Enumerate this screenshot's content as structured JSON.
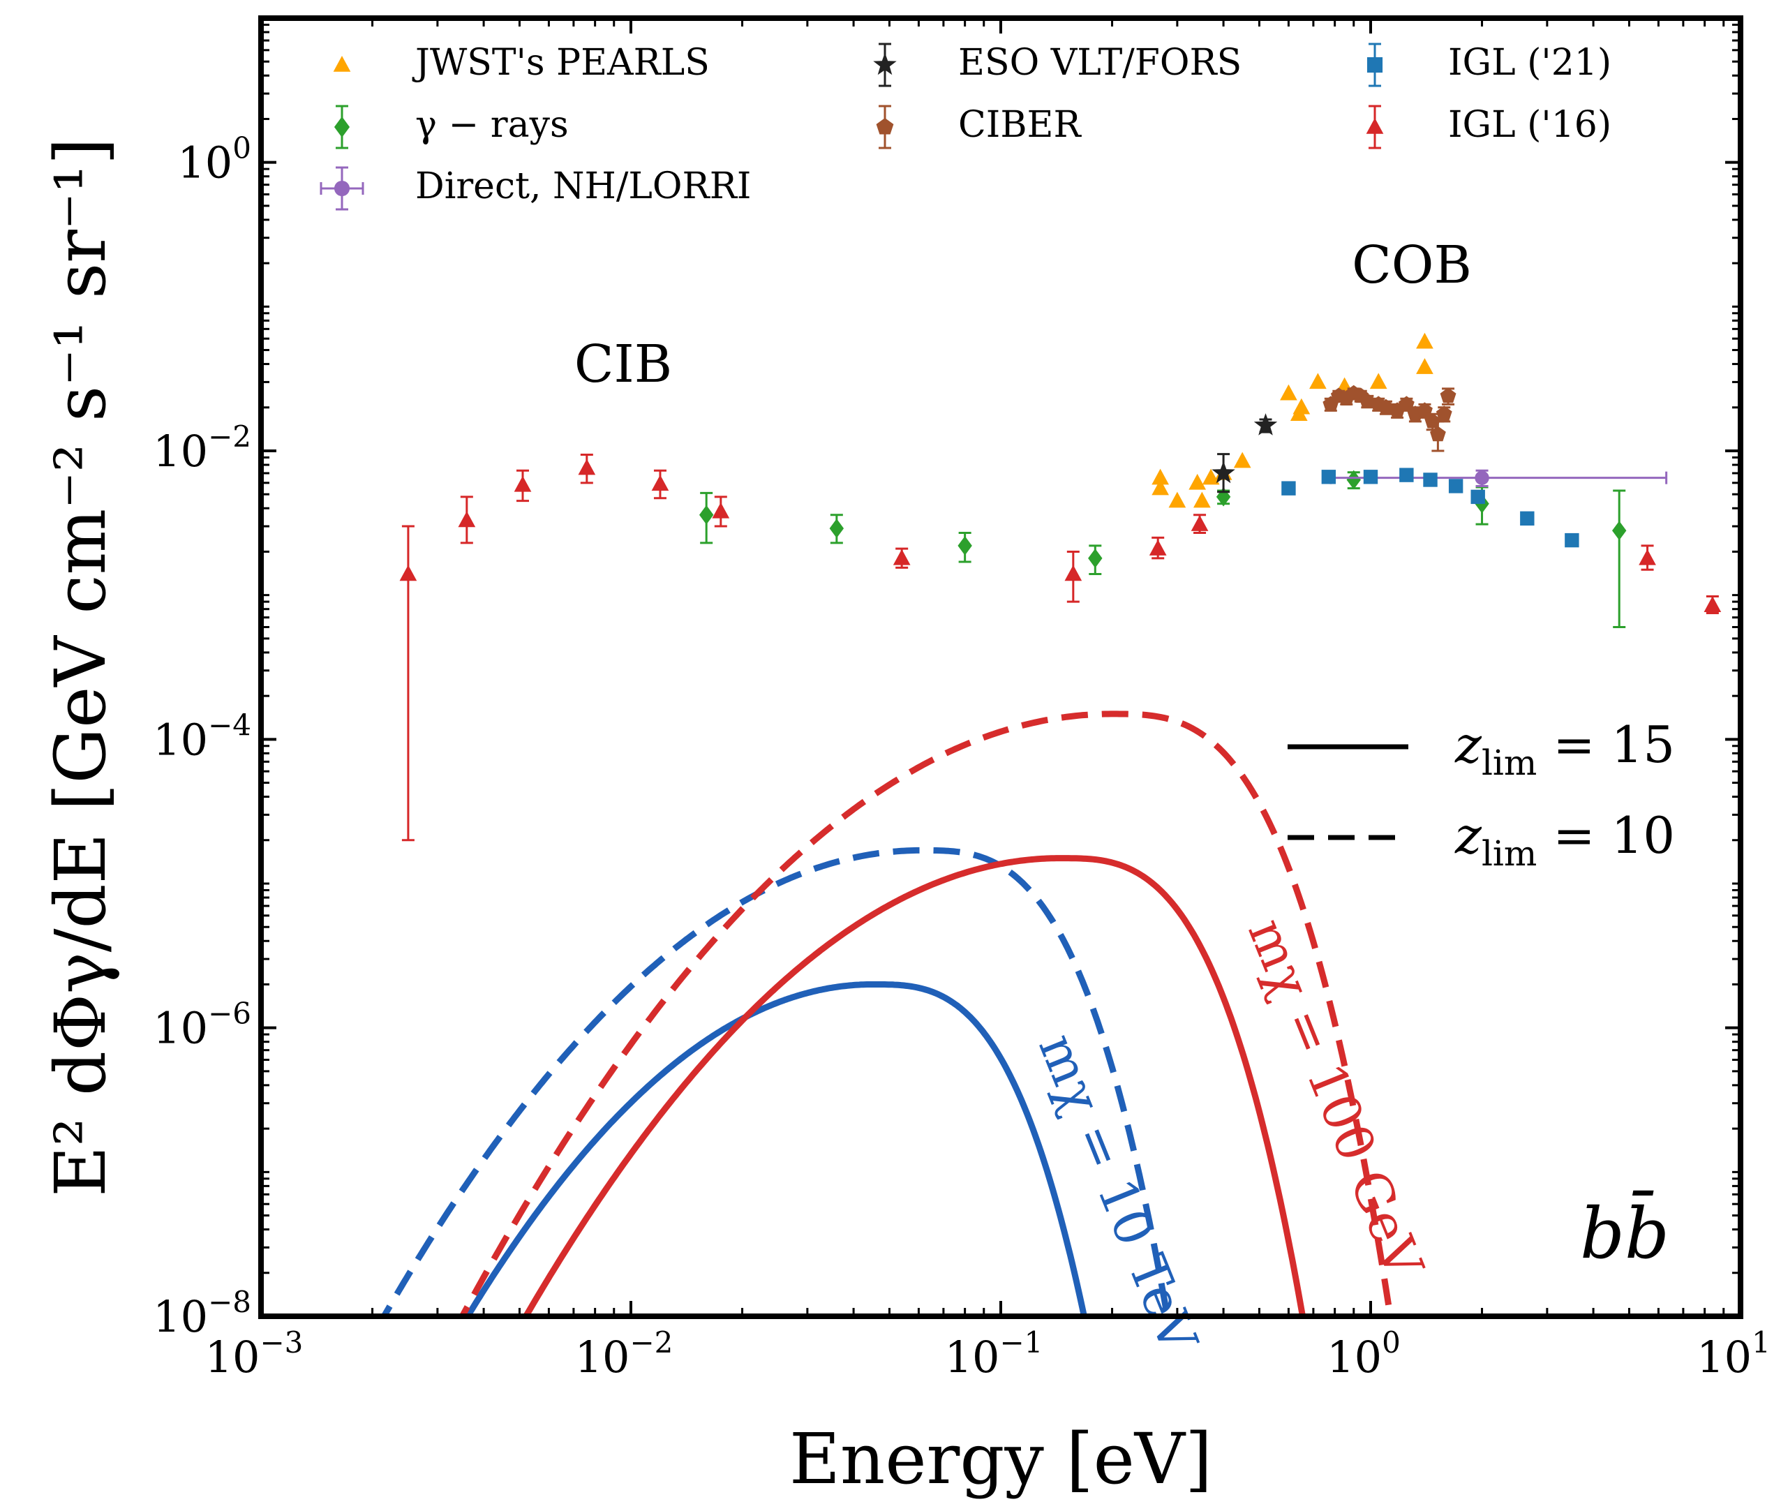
{
  "chart_data": {
    "type": "scatter",
    "xscale": "log",
    "yscale": "log",
    "xlabel": "Energy [eV]",
    "ylabel": "E² dΦγ/dE [GeV cm⁻² s⁻¹ sr⁻¹]",
    "xlim": [
      0.001,
      10
    ],
    "ylim": [
      1e-08,
      10
    ],
    "x_ticks": [
      {
        "value": 0.001,
        "base": "10",
        "exp": "−3"
      },
      {
        "value": 0.01,
        "base": "10",
        "exp": "−2"
      },
      {
        "value": 0.1,
        "base": "10",
        "exp": "−1"
      },
      {
        "value": 1,
        "base": "10",
        "exp": "0"
      },
      {
        "value": 10,
        "base": "10",
        "exp": "1"
      }
    ],
    "y_ticks": [
      {
        "value": 1e-08,
        "base": "10",
        "exp": "−8"
      },
      {
        "value": 1e-06,
        "base": "10",
        "exp": "−6"
      },
      {
        "value": 0.0001,
        "base": "10",
        "exp": "−4"
      },
      {
        "value": 0.01,
        "base": "10",
        "exp": "−2"
      },
      {
        "value": 1,
        "base": "10",
        "exp": "0"
      }
    ],
    "annotations": {
      "cib": "CIB",
      "cob": "COB",
      "channel": "bb̄",
      "curve_label_blue": "mχ = 10 TeV",
      "curve_label_red": "mχ = 100 GeV"
    },
    "line_legend": [
      {
        "style": "solid",
        "label": "z",
        "sub": "lim",
        "rest": " = 15"
      },
      {
        "style": "dashed",
        "label": "z",
        "sub": "lim",
        "rest": " = 10"
      }
    ],
    "data_series": [
      {
        "name": "JWST's PEARLS",
        "marker": "triangle",
        "color": "#ffa500",
        "errorbars": false,
        "points": [
          [
            0.27,
            0.0065
          ],
          [
            0.27,
            0.0055
          ],
          [
            0.3,
            0.0045
          ],
          [
            0.34,
            0.006
          ],
          [
            0.35,
            0.0045
          ],
          [
            0.37,
            0.0065
          ],
          [
            0.4,
            0.007
          ],
          [
            0.45,
            0.0085
          ],
          [
            0.6,
            0.025
          ],
          [
            0.64,
            0.018
          ],
          [
            0.65,
            0.02
          ],
          [
            0.72,
            0.03
          ],
          [
            0.85,
            0.028
          ],
          [
            1.05,
            0.03
          ],
          [
            1.4,
            0.057
          ],
          [
            1.4,
            0.038
          ]
        ]
      },
      {
        "name": "γ − rays",
        "marker": "diamond",
        "color": "#2ca02c",
        "errorbars": true,
        "points": [
          [
            0.016,
            0.0036,
            0.0013,
            0.0015
          ],
          [
            0.036,
            0.0029,
            0.0006,
            0.0007
          ],
          [
            0.08,
            0.0022,
            0.0005,
            0.0005
          ],
          [
            0.18,
            0.0018,
            0.0004,
            0.0004
          ],
          [
            0.4,
            0.0048,
            0.0005,
            0.0005
          ],
          [
            0.9,
            0.0063,
            0.0008,
            0.0008
          ],
          [
            2.0,
            0.0043,
            0.0012,
            0.0013
          ],
          [
            4.7,
            0.0028,
            0.0022,
            0.0025
          ]
        ]
      },
      {
        "name": "Direct, NH/LORRI",
        "marker": "circle",
        "color": "#9467bd",
        "errorbars": true,
        "xerr": [
          0.78,
          6.3
        ],
        "points": [
          [
            2.0,
            0.0065,
            0.0008,
            0.0008
          ]
        ]
      },
      {
        "name": "ESO VLT/FORS",
        "marker": "star",
        "color": "#222222",
        "errorbars": true,
        "points": [
          [
            0.4,
            0.007,
            0.0018,
            0.0025
          ],
          [
            0.52,
            0.015,
            0.0015,
            0.0015
          ]
        ]
      },
      {
        "name": "CIBER",
        "marker": "pentagon",
        "color": "#a0522d",
        "errorbars": true,
        "points": [
          [
            0.78,
            0.021,
            0.002,
            0.002
          ],
          [
            0.82,
            0.024,
            0.002,
            0.002
          ],
          [
            0.86,
            0.023,
            0.002,
            0.002
          ],
          [
            0.9,
            0.025,
            0.002,
            0.002
          ],
          [
            0.94,
            0.024,
            0.002,
            0.002
          ],
          [
            0.98,
            0.022,
            0.002,
            0.002
          ],
          [
            1.05,
            0.021,
            0.002,
            0.002
          ],
          [
            1.1,
            0.02,
            0.002,
            0.002
          ],
          [
            1.18,
            0.019,
            0.002,
            0.002
          ],
          [
            1.25,
            0.021,
            0.002,
            0.002
          ],
          [
            1.32,
            0.018,
            0.002,
            0.002
          ],
          [
            1.4,
            0.019,
            0.002,
            0.002
          ],
          [
            1.47,
            0.016,
            0.002,
            0.002
          ],
          [
            1.52,
            0.013,
            0.003,
            0.003
          ],
          [
            1.58,
            0.018,
            0.002,
            0.002
          ],
          [
            1.62,
            0.024,
            0.003,
            0.003
          ]
        ]
      },
      {
        "name": "IGL ('21)",
        "marker": "square",
        "color": "#1f77b4",
        "errorbars": true,
        "points": [
          [
            0.6,
            0.0055,
            0.0002,
            0.0002
          ],
          [
            0.77,
            0.0066,
            0.0002,
            0.0002
          ],
          [
            1.0,
            0.0066,
            0.0002,
            0.0002
          ],
          [
            1.25,
            0.0068,
            0.0002,
            0.0002
          ],
          [
            1.45,
            0.0063,
            0.0002,
            0.0002
          ],
          [
            1.7,
            0.0057,
            0.0002,
            0.0002
          ],
          [
            1.95,
            0.0048,
            0.0002,
            0.0002
          ],
          [
            2.65,
            0.0034,
            0.0002,
            0.0002
          ],
          [
            3.5,
            0.0024,
            0.0002,
            0.0002
          ]
        ]
      },
      {
        "name": "IGL ('16)",
        "marker": "triangle",
        "color": "#d62728",
        "errorbars": true,
        "points": [
          [
            0.0025,
            0.0014,
            0.00138,
            0.0016
          ],
          [
            0.0036,
            0.0033,
            0.001,
            0.0015
          ],
          [
            0.0051,
            0.0058,
            0.0013,
            0.0015
          ],
          [
            0.0076,
            0.0076,
            0.0016,
            0.0018
          ],
          [
            0.012,
            0.0059,
            0.0012,
            0.0014
          ],
          [
            0.0175,
            0.0038,
            0.0008,
            0.001
          ],
          [
            0.054,
            0.0018,
            0.00025,
            0.0003
          ],
          [
            0.157,
            0.0014,
            0.0005,
            0.0006
          ],
          [
            0.266,
            0.0021,
            0.0003,
            0.0004
          ],
          [
            0.345,
            0.0031,
            0.0004,
            0.0005
          ],
          [
            5.6,
            0.0018,
            0.0003,
            0.0004
          ],
          [
            8.4,
            0.00085,
            0.0001,
            0.00013
          ]
        ]
      }
    ],
    "legend_layout": [
      [
        "JWST's PEARLS",
        "ESO VLT/FORS",
        "IGL ('21)"
      ],
      [
        "γ − rays",
        "CIBER",
        "IGL ('16)"
      ],
      [
        "Direct, NH/LORRI"
      ]
    ],
    "model_curves": [
      {
        "name": "mχ = 10 TeV, zlim = 15",
        "color": "#2060b8",
        "style": "solid",
        "peak_E": 0.045,
        "peak_y": 2e-06,
        "lo": 0.00362,
        "hi": 0.168
      },
      {
        "name": "mχ = 10 TeV, zlim = 10",
        "color": "#2060b8",
        "style": "dashed",
        "peak_E": 0.061,
        "peak_y": 1.7e-05,
        "lo": 0.00215,
        "hi": 0.282
      },
      {
        "name": "mχ = 100 GeV, zlim = 15",
        "color": "#d62c2c",
        "style": "solid",
        "peak_E": 0.145,
        "peak_y": 1.5e-05,
        "lo": 0.0052,
        "hi": 0.655
      },
      {
        "name": "mχ = 100 GeV, zlim = 10",
        "color": "#d62c2c",
        "style": "dashed",
        "peak_E": 0.2,
        "peak_y": 0.00015,
        "lo": 0.0035,
        "hi": 1.13
      }
    ]
  }
}
